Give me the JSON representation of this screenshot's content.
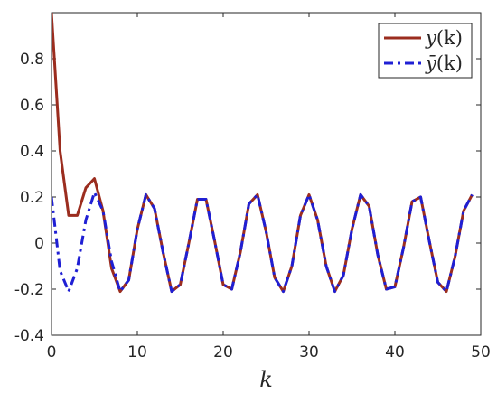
{
  "chart_data": {
    "type": "line",
    "xlabel": "k",
    "ylabel": "",
    "xlim": [
      0,
      50
    ],
    "ylim": [
      -0.4,
      1.0
    ],
    "xticks": [
      0,
      10,
      20,
      30,
      40,
      50
    ],
    "yticks": [
      -0.4,
      -0.2,
      0,
      0.2,
      0.4,
      0.6,
      0.8
    ],
    "ytick_labels": [
      "-0.4",
      "-0.2",
      "0",
      "0.2",
      "0.4",
      "0.6",
      "0.8"
    ],
    "xtick_labels": [
      "0",
      "10",
      "20",
      "30",
      "40",
      "50"
    ],
    "grid": false,
    "legend_position": "top-right",
    "x": [
      0,
      1,
      2,
      3,
      4,
      5,
      6,
      7,
      8,
      9,
      10,
      11,
      12,
      13,
      14,
      15,
      16,
      17,
      18,
      19,
      20,
      21,
      22,
      23,
      24,
      25,
      26,
      27,
      28,
      29,
      30,
      31,
      32,
      33,
      34,
      35,
      36,
      37,
      38,
      39,
      40,
      41,
      42,
      43,
      44,
      45,
      46,
      47,
      48,
      49
    ],
    "series": [
      {
        "name": "y(k)",
        "color": "#9b2d1f",
        "style": "solid",
        "values": [
          1.0,
          0.4,
          0.12,
          0.12,
          0.24,
          0.28,
          0.14,
          -0.11,
          -0.21,
          -0.16,
          0.06,
          0.21,
          0.15,
          -0.04,
          -0.21,
          -0.18,
          0.0,
          0.19,
          0.19,
          0.01,
          -0.18,
          -0.2,
          -0.04,
          0.17,
          0.21,
          0.05,
          -0.15,
          -0.21,
          -0.1,
          0.12,
          0.21,
          0.1,
          -0.1,
          -0.21,
          -0.14,
          0.06,
          0.21,
          0.16,
          -0.05,
          -0.2,
          -0.19,
          -0.02,
          0.18,
          0.2,
          0.01,
          -0.17,
          -0.21,
          -0.06,
          0.14,
          0.21
        ]
      },
      {
        "name": "ȳ(k)",
        "color": "#1f1fd4",
        "style": "dashdot",
        "values": [
          0.2,
          -0.12,
          -0.21,
          -0.11,
          0.1,
          0.22,
          0.14,
          -0.08,
          -0.21,
          -0.16,
          0.06,
          0.21,
          0.15,
          -0.04,
          -0.21,
          -0.18,
          0.0,
          0.19,
          0.19,
          0.01,
          -0.18,
          -0.2,
          -0.04,
          0.17,
          0.21,
          0.05,
          -0.15,
          -0.21,
          -0.1,
          0.12,
          0.21,
          0.1,
          -0.1,
          -0.21,
          -0.14,
          0.06,
          0.21,
          0.16,
          -0.05,
          -0.2,
          -0.19,
          -0.02,
          0.18,
          0.2,
          0.01,
          -0.17,
          -0.21,
          -0.06,
          0.14,
          0.21
        ]
      }
    ],
    "legend": [
      {
        "label_main": "y",
        "label_arg": "(k)"
      },
      {
        "label_main": "ȳ",
        "label_arg": "(k)"
      }
    ]
  }
}
